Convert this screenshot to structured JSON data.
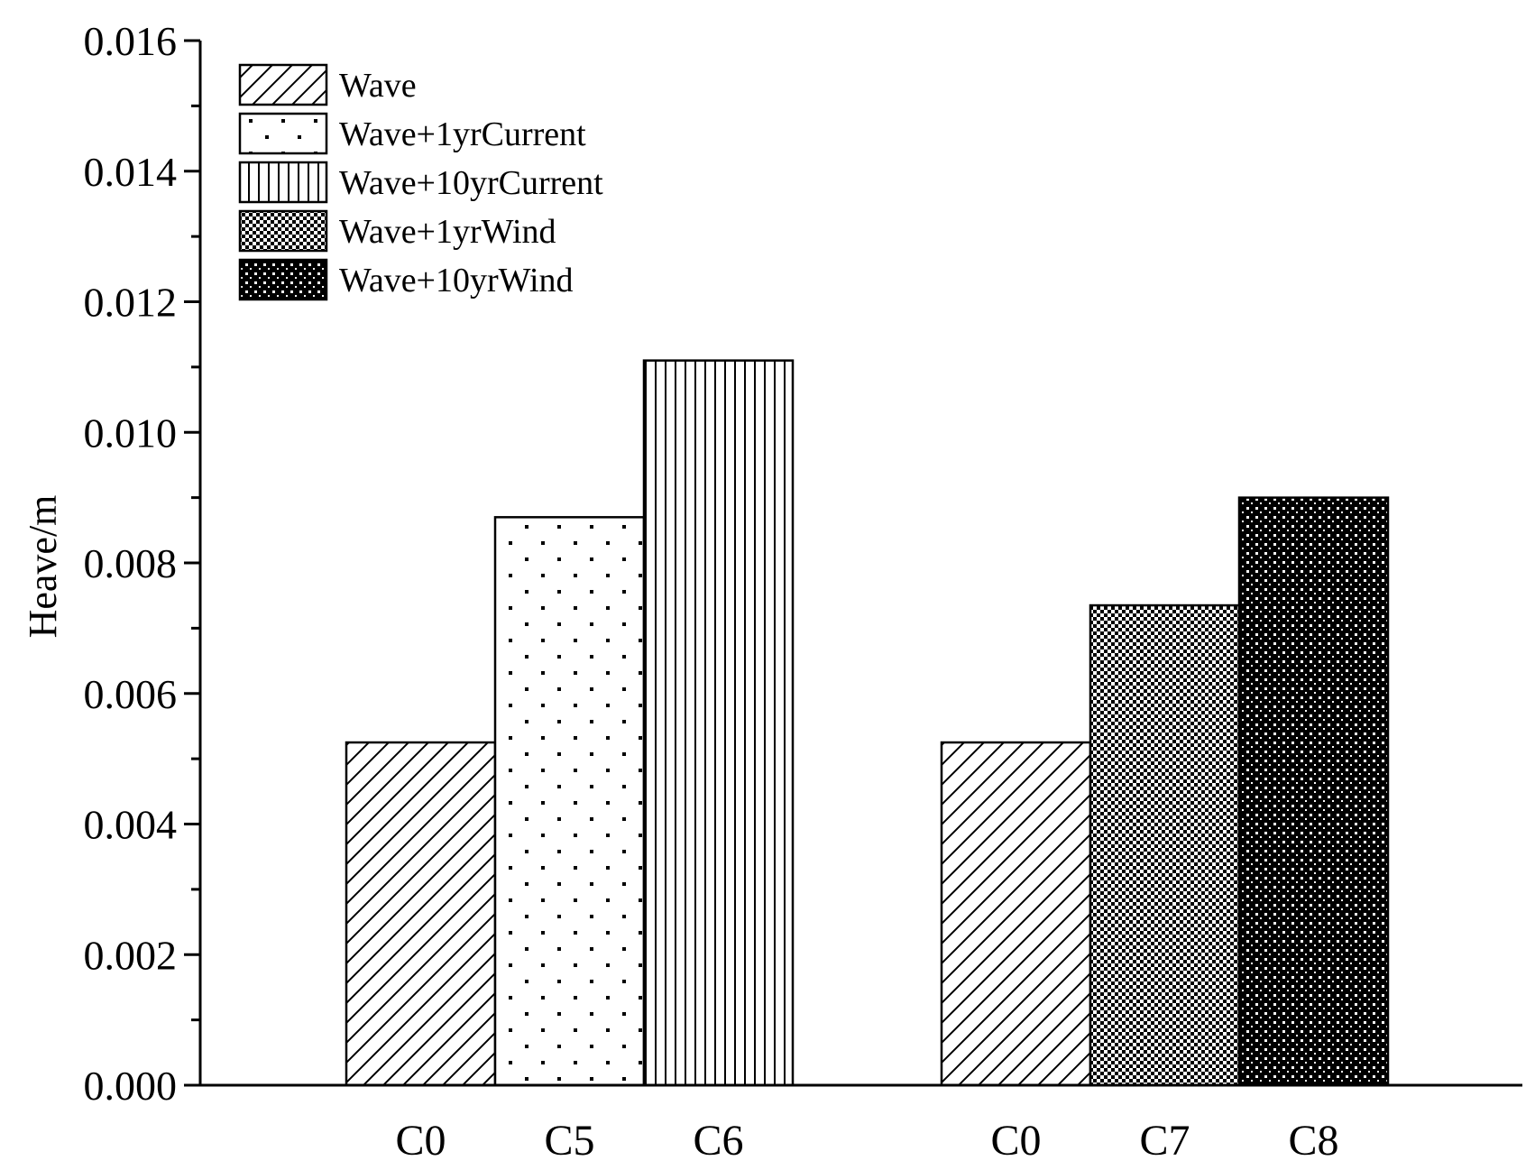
{
  "chart_data": {
    "type": "bar",
    "title": "",
    "xlabel": "",
    "ylabel": "Heave/m",
    "ylim": [
      0,
      0.016
    ],
    "yticks": [
      "0.000",
      "0.002",
      "0.004",
      "0.006",
      "0.008",
      "0.010",
      "0.012",
      "0.014",
      "0.016"
    ],
    "grid": false,
    "legend_position": "top-left",
    "series": [
      {
        "name": "Wave",
        "pattern": "diagonal-hatch"
      },
      {
        "name": "Wave+1yrCurrent",
        "pattern": "sparse-dots"
      },
      {
        "name": "Wave+10yrCurrent",
        "pattern": "vertical-lines"
      },
      {
        "name": "Wave+1yrWind",
        "pattern": "checker-fine"
      },
      {
        "name": "Wave+10yrWind",
        "pattern": "checker-dense"
      }
    ],
    "groups": [
      {
        "bars": [
          {
            "category": "C0",
            "series": "Wave",
            "value": 0.00525
          },
          {
            "category": "C5",
            "series": "Wave+1yrCurrent",
            "value": 0.0087
          },
          {
            "category": "C6",
            "series": "Wave+10yrCurrent",
            "value": 0.0111
          }
        ]
      },
      {
        "bars": [
          {
            "category": "C0",
            "series": "Wave",
            "value": 0.00525
          },
          {
            "category": "C7",
            "series": "Wave+1yrWind",
            "value": 0.00735
          },
          {
            "category": "C8",
            "series": "Wave+10yrWind",
            "value": 0.009
          }
        ]
      }
    ]
  }
}
